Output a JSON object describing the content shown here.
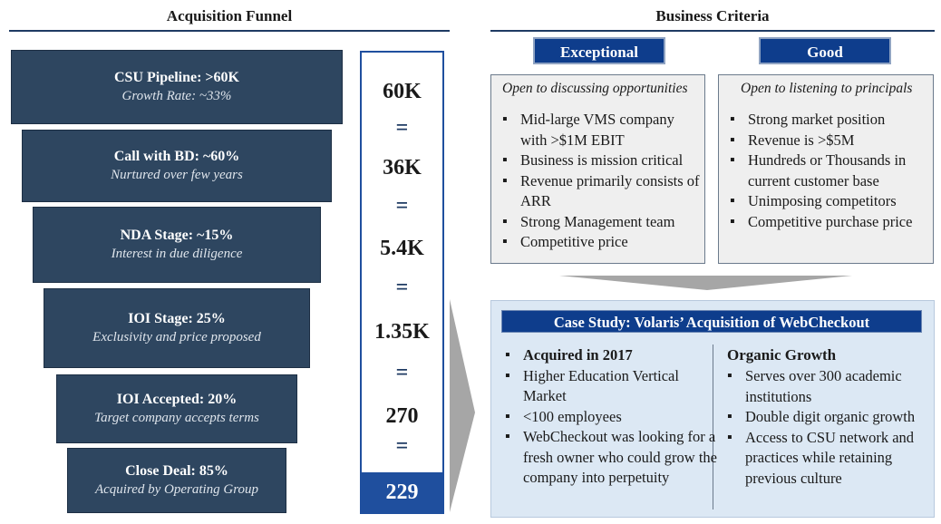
{
  "funnel": {
    "title": "Acquisition Funnel",
    "stages": [
      {
        "title": "CSU Pipeline: >60K",
        "subtitle": "Growth Rate: ~33%"
      },
      {
        "title": "Call with BD: ~60%",
        "subtitle": "Nurtured over few years"
      },
      {
        "title": "NDA Stage: ~15%",
        "subtitle": "Interest in due diligence"
      },
      {
        "title": "IOI Stage: 25%",
        "subtitle": "Exclusivity and price proposed"
      },
      {
        "title": "IOI Accepted: 20%",
        "subtitle": "Target company accepts terms"
      },
      {
        "title": "Close Deal: 85%",
        "subtitle": "Acquired by Operating Group"
      }
    ],
    "numbers": [
      "60K",
      "36K",
      "5.4K",
      "1.35K",
      "270"
    ],
    "equals": "=",
    "final": "229"
  },
  "criteria": {
    "title": "Business Criteria",
    "exceptional": {
      "label": "Exceptional",
      "lead": "Open to discussing opportunities",
      "items": [
        "Mid-large VMS company with >$1M EBIT",
        "Business is mission critical",
        "Revenue primarily consists of  ARR",
        "Strong Management team",
        "Competitive price"
      ]
    },
    "good": {
      "label": "Good",
      "lead": "Open to listening to principals",
      "items": [
        "Strong market position",
        "Revenue is >$5M",
        "Hundreds or Thousands in current customer base",
        "Unimposing competitors",
        "Competitive purchase price"
      ]
    }
  },
  "case_study": {
    "title": "Case Study: Volaris’ Acquisition of WebCheckout",
    "left_items": [
      "Acquired in 2017",
      "Higher Education Vertical Market",
      "<100 employees",
      "WebCheckout was looking for a fresh owner who could grow the company into perpetuity"
    ],
    "right_heading": "Organic Growth",
    "right_items": [
      "Serves over 300 academic institutions",
      "Double digit organic growth",
      "Access to CSU network and practices while retaining previous culture"
    ]
  },
  "colors": {
    "funnel_fill": "#2e4660",
    "accent_blue": "#0e3d8c",
    "case_bg": "#dce8f4"
  }
}
